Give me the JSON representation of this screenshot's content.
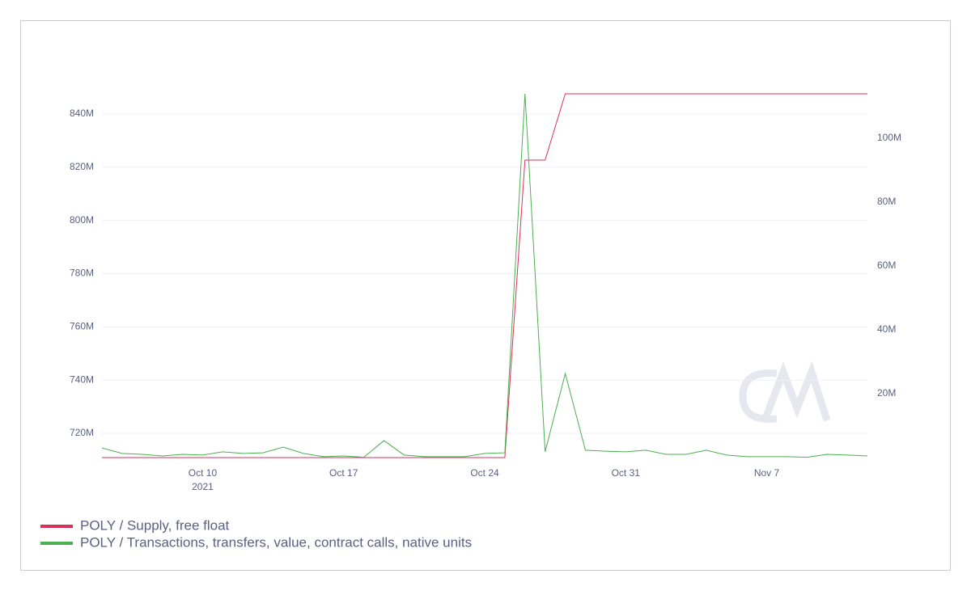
{
  "chart_data": {
    "type": "line",
    "x": [
      "2021-10-05",
      "2021-10-06",
      "2021-10-07",
      "2021-10-08",
      "2021-10-09",
      "2021-10-10",
      "2021-10-11",
      "2021-10-12",
      "2021-10-13",
      "2021-10-14",
      "2021-10-15",
      "2021-10-16",
      "2021-10-17",
      "2021-10-18",
      "2021-10-19",
      "2021-10-20",
      "2021-10-21",
      "2021-10-22",
      "2021-10-23",
      "2021-10-24",
      "2021-10-25",
      "2021-10-26",
      "2021-10-27",
      "2021-10-28",
      "2021-10-29",
      "2021-10-30",
      "2021-10-31",
      "2021-11-01",
      "2021-11-02",
      "2021-11-03",
      "2021-11-04",
      "2021-11-05",
      "2021-11-06",
      "2021-11-07",
      "2021-11-08",
      "2021-11-09",
      "2021-11-10",
      "2021-11-11",
      "2021-11-12"
    ],
    "xlim": [
      "2021-10-05",
      "2021-11-12"
    ],
    "xticks": [
      {
        "value": "2021-10-10",
        "label": "Oct 10",
        "sublabel": "2021"
      },
      {
        "value": "2021-10-17",
        "label": "Oct 17"
      },
      {
        "value": "2021-10-24",
        "label": "Oct 24"
      },
      {
        "value": "2021-10-31",
        "label": "Oct 31"
      },
      {
        "value": "2021-11-07",
        "label": "Nov 7"
      }
    ],
    "ylim": [
      710900000,
      847600000
    ],
    "yticks": [
      {
        "value": 720000000,
        "label": "720M"
      },
      {
        "value": 740000000,
        "label": "740M"
      },
      {
        "value": 760000000,
        "label": "760M"
      },
      {
        "value": 780000000,
        "label": "780M"
      },
      {
        "value": 800000000,
        "label": "800M"
      },
      {
        "value": 820000000,
        "label": "820M"
      },
      {
        "value": 840000000,
        "label": "840M"
      }
    ],
    "y2lim": [
      0,
      113900000
    ],
    "y2ticks": [
      {
        "value": 20000000,
        "label": "20M"
      },
      {
        "value": 40000000,
        "label": "40M"
      },
      {
        "value": 60000000,
        "label": "60M"
      },
      {
        "value": 80000000,
        "label": "80M"
      },
      {
        "value": 100000000,
        "label": "100M"
      }
    ],
    "grid": true,
    "legend": "bottom-left",
    "series": [
      {
        "name": "POLY / Supply, free float",
        "color": "#d9315a",
        "axis": "y",
        "values": [
          710900000,
          710900000,
          710900000,
          710900000,
          710900000,
          710900000,
          710900000,
          710900000,
          710900000,
          710900000,
          710900000,
          710900000,
          710900000,
          710900000,
          710900000,
          710900000,
          710900000,
          710900000,
          710900000,
          710900000,
          710900000,
          822700000,
          822700000,
          847600000,
          847600000,
          847600000,
          847600000,
          847600000,
          847600000,
          847600000,
          847600000,
          847600000,
          847600000,
          847600000,
          847600000,
          847600000,
          847600000,
          847600000,
          847600000
        ]
      },
      {
        "name": "POLY / Transactions, transfers, value, contract calls, native units",
        "color": "#4caf50",
        "axis": "y2",
        "values": [
          3000000,
          1300000,
          1000000,
          500000,
          1000000,
          800000,
          1800000,
          1300000,
          1500000,
          3300000,
          1300000,
          300000,
          500000,
          100000,
          5300000,
          800000,
          300000,
          300000,
          300000,
          1300000,
          1500000,
          113900000,
          1800000,
          26300000,
          2300000,
          2000000,
          1800000,
          2300000,
          1000000,
          1000000,
          2300000,
          800000,
          300000,
          300000,
          300000,
          100000,
          1000000,
          800000,
          500000
        ]
      }
    ]
  }
}
